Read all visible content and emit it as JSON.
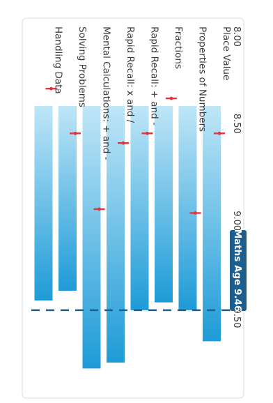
{
  "chart_data": {
    "type": "bar",
    "orientation": "horizontal",
    "title": "",
    "xlabel": "",
    "ylabel": "",
    "xlim": [
      8.0,
      9.5
    ],
    "grid": false,
    "ticks": [
      {
        "value": 8.0,
        "label": "8.00"
      },
      {
        "value": 8.5,
        "label": "8.50"
      },
      {
        "value": 9.0,
        "label": "9.00"
      },
      {
        "value": 9.5,
        "label": "9.50"
      }
    ],
    "categories": [
      "Place Value",
      "Properties of Numbers",
      "Fractions",
      "Rapid Recall: + and -",
      "Rapid Recall: x and /",
      "Mental Calculations: + and -",
      "Solving Problems",
      "Handling Data"
    ],
    "bar_values": [
      9.62,
      9.46,
      9.42,
      9.46,
      9.73,
      9.76,
      9.36,
      9.41
    ],
    "marker_values": [
      8.55,
      8.96,
      8.37,
      8.55,
      8.6,
      8.94,
      8.55,
      8.32
    ],
    "reference_line": {
      "value": 9.46,
      "label": "Maths Age 9.46"
    },
    "colors": {
      "bar_light": "#bfe6f7",
      "bar_dark": "#1e9bd7",
      "marker": "#d9363e",
      "reference": "#1b5e8f",
      "badge": "#1b5e8f",
      "badge_text": "#ffffff"
    }
  }
}
